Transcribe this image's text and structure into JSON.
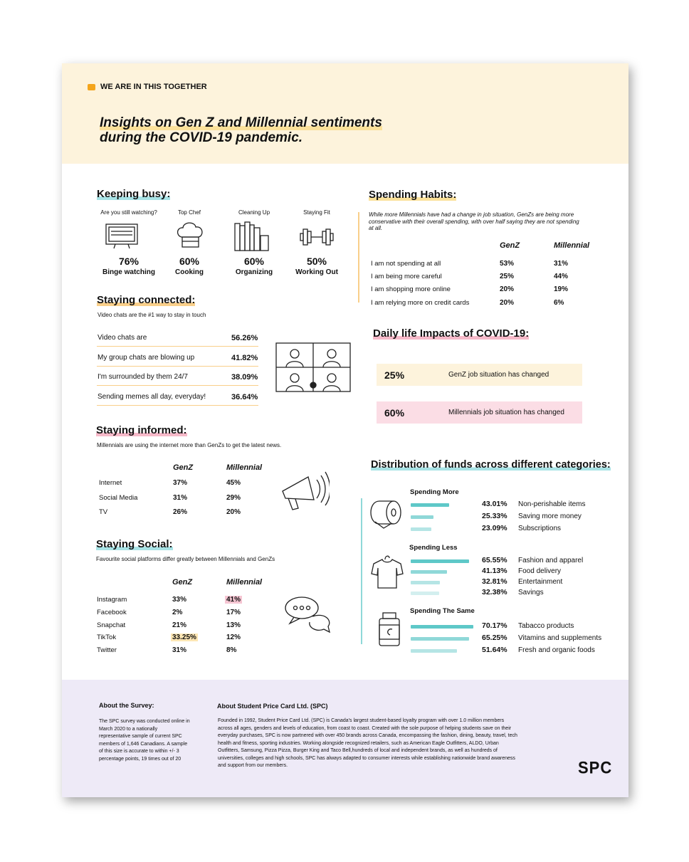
{
  "header": {
    "tag": "WE ARE IN THIS TOGETHER",
    "title_line1": "Insights on Gen Z and Millennial sentiments",
    "title_line2": "during the COVID-19 pandemic."
  },
  "keeping_busy": {
    "title": "Keeping busy:",
    "items": [
      {
        "question": "Are you still watching?",
        "value": "76%",
        "label": "Binge watching"
      },
      {
        "question": "Top Chef",
        "value": "60%",
        "label": "Cooking"
      },
      {
        "question": "Cleaning Up",
        "value": "60%",
        "label": "Organizing"
      },
      {
        "question": "Staying Fit",
        "value": "50%",
        "label": "Working Out"
      }
    ]
  },
  "staying_connected": {
    "title": "Staying connected:",
    "subtitle": "Video chats are the #1 way to stay in touch",
    "rows": [
      [
        "Video chats are",
        "56.26%"
      ],
      [
        "My group chats are blowing up",
        "41.82%"
      ],
      [
        "I'm surrounded by them 24/7",
        "38.09%"
      ],
      [
        "Sending memes all day, everyday!",
        "36.64%"
      ]
    ]
  },
  "staying_informed": {
    "title": "Staying informed:",
    "subtitle": "Millennials are using the internet more than GenZs to get the latest news.",
    "columns": [
      "GenZ",
      "Millennial"
    ],
    "rows": [
      [
        "Internet",
        "37%",
        "45%"
      ],
      [
        "Social Media",
        "31%",
        "29%"
      ],
      [
        "TV",
        "26%",
        "20%"
      ]
    ]
  },
  "staying_social": {
    "title": "Staying Social:",
    "subtitle": "Favourite social platforms differ greatly between Millennials and GenZs",
    "columns": [
      "GenZ",
      "Millennial"
    ],
    "rows": [
      [
        "Instagram",
        "33%",
        "41%"
      ],
      [
        "Facebook",
        "2%",
        "17%"
      ],
      [
        "Snapchat",
        "21%",
        "13%"
      ],
      [
        "TikTok",
        "33.25%",
        "12%"
      ],
      [
        "Twitter",
        "31%",
        "8%"
      ]
    ]
  },
  "spending_habits": {
    "title": "Spending Habits:",
    "subtitle": "While more Millennials have had a change in job situation, GenZs are being more conservative with their overall spending, with over half saying they are not spending at all.",
    "columns": [
      "GenZ",
      "Millennial"
    ],
    "rows": [
      [
        "I am not spending at all",
        "53%",
        "31%"
      ],
      [
        "I am being more careful",
        "25%",
        "44%"
      ],
      [
        "I am shopping more online",
        "20%",
        "19%"
      ],
      [
        "I am relying more on credit cards",
        "20%",
        "6%"
      ]
    ]
  },
  "daily_life": {
    "title": "Daily life Impacts of COVID-19:",
    "items": [
      {
        "value": "25%",
        "label": "GenZ job situation has changed"
      },
      {
        "value": "60%",
        "label": "Millennials job situation has changed"
      }
    ]
  },
  "distribution": {
    "title": "Distribution of funds across different categories:",
    "groups": [
      {
        "name": "Spending More",
        "items": [
          {
            "value": "43.01%",
            "label": "Non-perishable items"
          },
          {
            "value": "25.33%",
            "label": "Saving more money"
          },
          {
            "value": "23.09%",
            "label": "Subscriptions"
          }
        ]
      },
      {
        "name": "Spending Less",
        "items": [
          {
            "value": "65.55%",
            "label": "Fashion and apparel"
          },
          {
            "value": "41.13%",
            "label": "Food delivery"
          },
          {
            "value": "32.81%",
            "label": "Entertainment"
          },
          {
            "value": "32.38%",
            "label": "Savings"
          }
        ]
      },
      {
        "name": "Spending The Same",
        "items": [
          {
            "value": "70.17%",
            "label": "Tabacco products"
          },
          {
            "value": "65.25%",
            "label": "Vitamins and supplements"
          },
          {
            "value": "51.64%",
            "label": "Fresh and organic foods"
          }
        ]
      }
    ]
  },
  "footer": {
    "survey_title": "About the Survey:",
    "survey_text": "The SPC survey was conducted online in March 2020 to a nationally representative sample of current SPC members of 1,646 Canadians. A sample of this size is accurate to within +/- 3 percentage points, 19 times out of 20",
    "about_title": "About Student Price Card Ltd. (SPC)",
    "about_text": "Founded in 1992, Student Price Card Ltd. (SPC) is Canada's largest student-based loyalty program with over 1.0 million members across all ages, genders and levels of education, from coast to coast. Created with the sole purpose of helping students save on their everyday purchases, SPC is now partnered with over 450 brands across Canada, encompassing the fashion, dining, beauty, travel, tech health and fitness, sporting industries. Working alongside recognized retailers, such as American Eagle Outfitters, ALDO, Urban Outfitters, Samsung, Pizza Pizza, Burger King and Taco Bell,hundreds of local and independent brands, as well as hundreds of universities, colleges and high schools, SPC has always adapted to consumer interests while establishing nationwide brand awareness and support from our members.",
    "logo": "SPC"
  }
}
